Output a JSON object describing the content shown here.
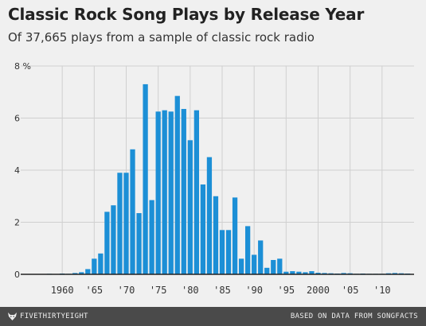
{
  "title": "Classic Rock Song Plays by Release Year",
  "subtitle": "Of 37,665 plays from a sample of classic rock radio",
  "footer": {
    "brand": "FIVETHIRTYEIGHT",
    "source": "BASED ON DATA FROM SONGFACTS"
  },
  "colors": {
    "bar": "#1c8fd6",
    "grid": "#d0d0d0",
    "baseline": "#222222",
    "background": "#f0f0f0",
    "footer": "#4a4a4a"
  },
  "icons": {
    "brand": "fivethirtyeight-fox-icon"
  },
  "chart_data": {
    "type": "bar",
    "title": "Classic Rock Song Plays by Release Year",
    "subtitle": "Of 37,665 plays from a sample of classic rock radio",
    "xlabel": "",
    "ylabel": "",
    "y_unit": "%",
    "ylim": [
      0,
      8
    ],
    "xlim": [
      1955,
      2015
    ],
    "grid": true,
    "y_ticks": [
      0,
      2,
      4,
      6,
      8
    ],
    "y_tick_labels": [
      "0",
      "2",
      "4",
      "6",
      "8 %"
    ],
    "x_ticks": [
      1960,
      1965,
      1970,
      1975,
      1980,
      1985,
      1990,
      1995,
      2000,
      2005,
      2010
    ],
    "x_tick_labels": [
      "1960",
      "'65",
      "'70",
      "'75",
      "'80",
      "'85",
      "'90",
      "'95",
      "2000",
      "'05",
      "'10"
    ],
    "x": [
      1958,
      1959,
      1960,
      1961,
      1962,
      1963,
      1964,
      1965,
      1966,
      1967,
      1968,
      1969,
      1970,
      1971,
      1972,
      1973,
      1974,
      1975,
      1976,
      1977,
      1978,
      1979,
      1980,
      1981,
      1982,
      1983,
      1984,
      1985,
      1986,
      1987,
      1988,
      1989,
      1990,
      1991,
      1992,
      1993,
      1994,
      1995,
      1996,
      1997,
      1998,
      1999,
      2000,
      2001,
      2002,
      2003,
      2004,
      2005,
      2006,
      2007,
      2008,
      2009,
      2010,
      2011,
      2012,
      2013,
      2014
    ],
    "values": [
      0.02,
      0.01,
      0.03,
      0.02,
      0.05,
      0.08,
      0.2,
      0.6,
      0.8,
      2.4,
      2.65,
      3.9,
      3.9,
      4.8,
      2.35,
      7.3,
      2.85,
      6.25,
      6.3,
      6.25,
      6.85,
      6.35,
      5.15,
      6.3,
      3.45,
      4.5,
      3.0,
      1.7,
      1.7,
      2.95,
      0.6,
      1.85,
      0.75,
      1.3,
      0.25,
      0.55,
      0.6,
      0.1,
      0.12,
      0.1,
      0.08,
      0.12,
      0.06,
      0.05,
      0.04,
      0.03,
      0.05,
      0.04,
      0.02,
      0.03,
      0.02,
      0.02,
      0.02,
      0.04,
      0.05,
      0.04,
      0.03
    ]
  }
}
